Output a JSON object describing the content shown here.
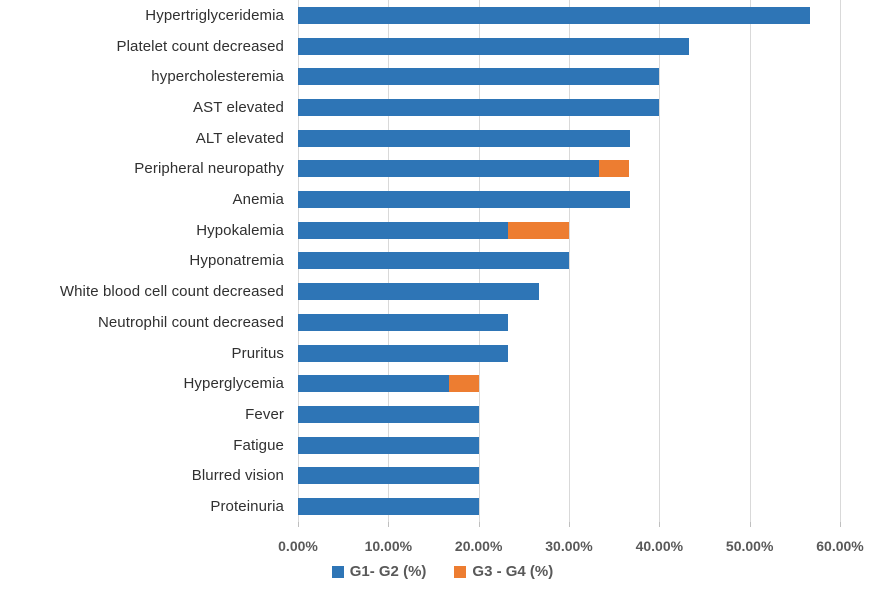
{
  "chart_data": {
    "type": "bar",
    "orientation": "horizontal",
    "stacked": true,
    "title": "",
    "xlabel": "",
    "ylabel": "",
    "grid": "vertical",
    "legend_position": "bottom",
    "x_axis": {
      "min": 0,
      "max": 60,
      "tick_step": 10,
      "ticks": [
        "0.00%",
        "10.00%",
        "20.00%",
        "30.00%",
        "40.00%",
        "50.00%",
        "60.00%"
      ]
    },
    "categories": [
      "Hypertriglyceridemia",
      "Platelet count decreased",
      "hypercholesteremia",
      "AST elevated",
      "ALT elevated",
      "Peripheral neuropathy",
      "Anemia",
      "Hypokalemia",
      "Hyponatremia",
      "White blood cell count decreased",
      "Neutrophil count decreased",
      "Pruritus",
      "Hyperglycemia",
      "Fever",
      "Fatigue",
      "Blurred vision",
      "Proteinuria"
    ],
    "series": [
      {
        "name": "G1- G2 (%)",
        "color": "#2E75B6",
        "values": [
          56.7,
          43.3,
          40.0,
          40.0,
          36.7,
          33.3,
          36.7,
          23.3,
          30.0,
          26.7,
          23.3,
          23.3,
          16.7,
          20.0,
          20.0,
          20.0,
          20.0
        ]
      },
      {
        "name": "G3 - G4 (%)",
        "color": "#ED7D31",
        "values": [
          0,
          0,
          0,
          0,
          0,
          3.3,
          0,
          6.7,
          0,
          0,
          0,
          0,
          3.3,
          0,
          0,
          0,
          0
        ]
      }
    ],
    "colors": {
      "gridline": "#d9d9d9",
      "tick_mark": "#bfbfbf",
      "axis_text": "#595959",
      "category_text": "#303030"
    }
  }
}
